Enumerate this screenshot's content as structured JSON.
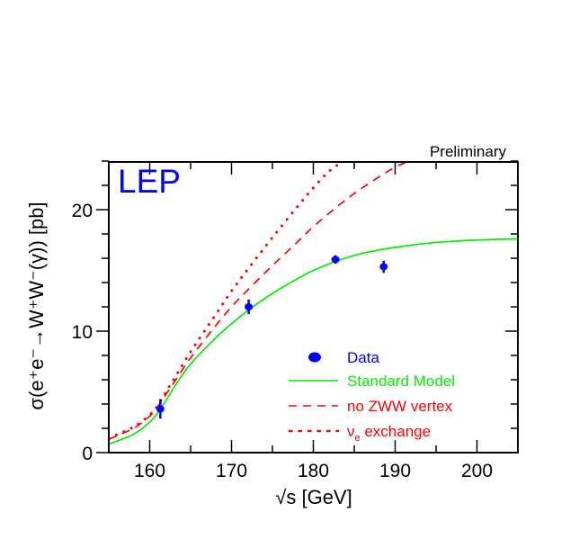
{
  "chart_data": {
    "type": "line",
    "title": "",
    "annotations": [
      {
        "text": "Preliminary",
        "position": "top-right-above-frame",
        "color": "#000000"
      },
      {
        "text": "LEP",
        "position": "top-left-inside",
        "color": "#0000ff"
      }
    ],
    "xlabel": "√s   [GeV]",
    "ylabel": "σ(e⁺e⁻→W⁺W⁻(γ))   [pb]",
    "xlim": [
      155,
      205
    ],
    "ylim": [
      0,
      24
    ],
    "x_ticks": [
      160,
      170,
      180,
      190,
      200
    ],
    "y_ticks": [
      0,
      10,
      20
    ],
    "x_tick_labels": [
      "160",
      "170",
      "180",
      "190",
      "200"
    ],
    "y_tick_labels": [
      "0",
      "10",
      "20"
    ],
    "grid": false,
    "legend_position": "lower-right",
    "legend": [
      {
        "label": "Data",
        "style": "marker",
        "color": "#0000ff"
      },
      {
        "label": "Standard Model",
        "style": "solid",
        "color": "#00ee00"
      },
      {
        "label": "no ZWW vertex",
        "style": "dashed",
        "color": "#ff0000"
      },
      {
        "label": "ν_e exchange",
        "style": "dotted",
        "color": "#ff0000"
      }
    ],
    "series": [
      {
        "name": "Data",
        "kind": "points",
        "color": "#0000ff",
        "x": [
          161.3,
          172.1,
          182.7,
          188.6
        ],
        "y": [
          3.6,
          12.0,
          15.9,
          15.3
        ],
        "yerr": [
          0.8,
          0.6,
          0.35,
          0.5
        ]
      },
      {
        "name": "Standard Model",
        "kind": "line",
        "style": "solid",
        "color": "#00ee00",
        "x": [
          155,
          158,
          160,
          161,
          162,
          163,
          165,
          168,
          170,
          172,
          175,
          178,
          180,
          183,
          186,
          190,
          195,
          200,
          205
        ],
        "y": [
          0.7,
          1.5,
          2.5,
          3.3,
          4.3,
          5.4,
          7.3,
          9.4,
          10.6,
          11.7,
          13.1,
          14.3,
          15.0,
          15.8,
          16.4,
          16.9,
          17.3,
          17.5,
          17.6
        ]
      },
      {
        "name": "no ZWW vertex",
        "kind": "line",
        "style": "dashed",
        "color": "#ff0000",
        "x": [
          155,
          158,
          160,
          161,
          162,
          163,
          165,
          168,
          170,
          172,
          175,
          178,
          180,
          183,
          186,
          190,
          192
        ],
        "y": [
          1.1,
          2.0,
          3.0,
          3.8,
          4.8,
          5.8,
          7.8,
          10.4,
          12.0,
          13.4,
          15.4,
          17.3,
          18.6,
          20.3,
          21.8,
          23.5,
          24.0
        ]
      },
      {
        "name": "ν_e exchange",
        "kind": "line",
        "style": "dotted",
        "color": "#ff0000",
        "x": [
          155,
          158,
          160,
          161,
          162,
          163,
          165,
          168,
          170,
          172,
          175,
          178,
          180,
          182,
          183.7
        ],
        "y": [
          1.2,
          2.1,
          3.1,
          3.9,
          5.0,
          6.1,
          8.3,
          11.3,
          13.3,
          15.1,
          17.7,
          20.2,
          21.8,
          23.2,
          24.0
        ]
      }
    ]
  }
}
